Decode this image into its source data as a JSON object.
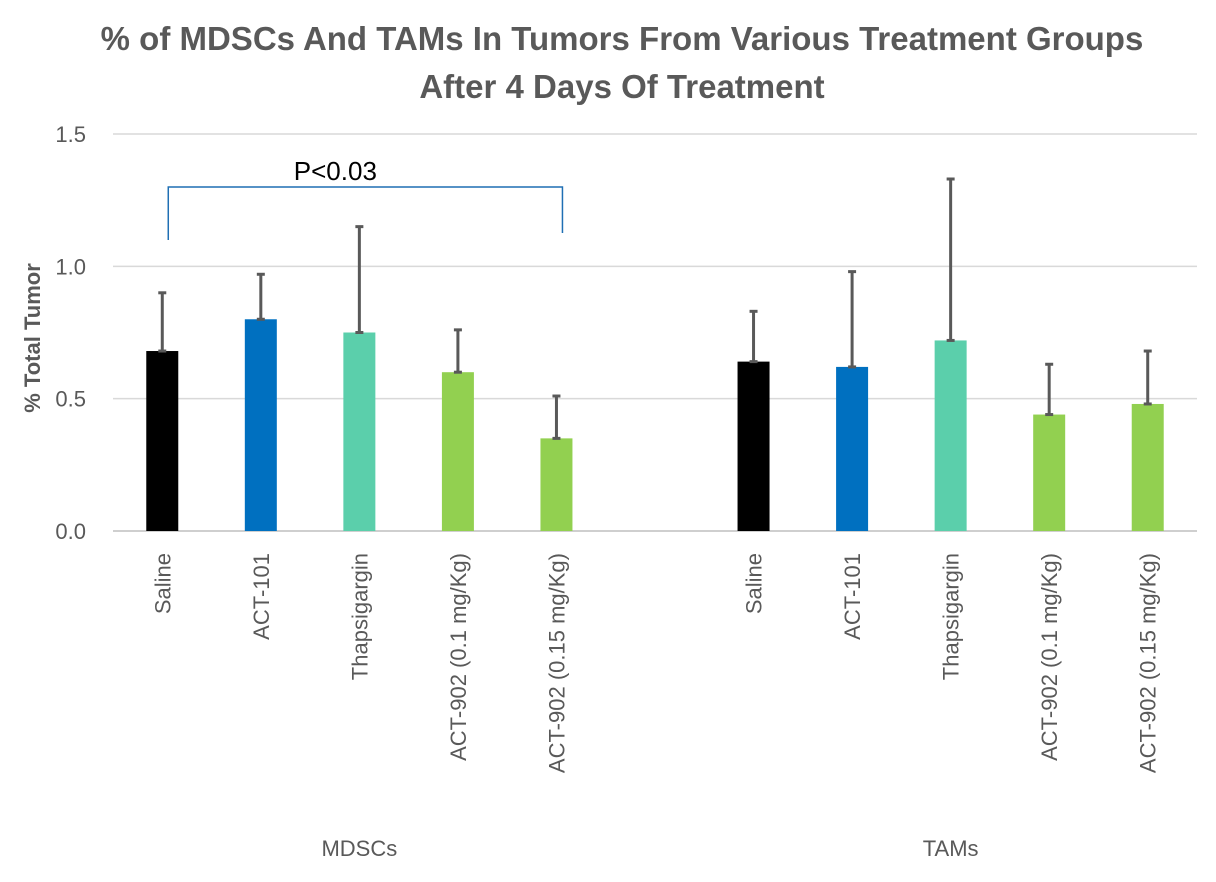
{
  "chart_data": {
    "type": "bar",
    "title_lines": [
      "% of MDSCs And TAMs In Tumors From Various Treatment Groups",
      "After 4 Days Of Treatment"
    ],
    "ylabel": "% Total Tumor",
    "xlabel": "",
    "ylim": [
      0,
      1.5
    ],
    "yticks": [
      "0.0",
      "0.5",
      "1.0",
      "1.5"
    ],
    "ytick_values": [
      0,
      0.5,
      1.0,
      1.5
    ],
    "grid": true,
    "legend": "none",
    "groups": [
      {
        "name": "MDSCs",
        "categories": [
          "Saline",
          "ACT-101",
          "Thapsigargin",
          "ACT-902 (0.1 mg/Kg)",
          "ACT-902 (0.15 mg/Kg)"
        ],
        "values": [
          0.68,
          0.8,
          0.75,
          0.6,
          0.35
        ],
        "error_upper": [
          0.22,
          0.17,
          0.4,
          0.16,
          0.16
        ]
      },
      {
        "name": "TAMs",
        "categories": [
          "Saline",
          "ACT-101",
          "Thapsigargin",
          "ACT-902 (0.1 mg/Kg)",
          "ACT-902 (0.15 mg/Kg)"
        ],
        "values": [
          0.64,
          0.62,
          0.72,
          0.44,
          0.48
        ],
        "error_upper": [
          0.19,
          0.36,
          0.61,
          0.19,
          0.2
        ]
      }
    ],
    "bar_colors": [
      "#000000",
      "#0070c0",
      "#5bcfab",
      "#92d050",
      "#92d050"
    ],
    "annotation": {
      "text": "P<0.03",
      "group": "MDSCs",
      "from_category": "Saline",
      "to_category": "ACT-902 (0.15 mg/Kg)"
    }
  }
}
